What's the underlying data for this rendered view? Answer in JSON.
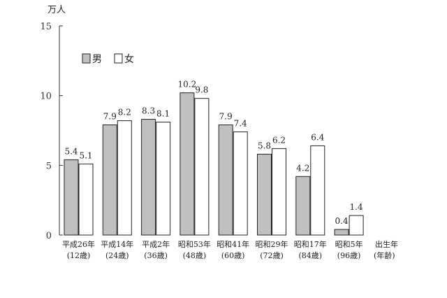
{
  "chart_data": {
    "type": "bar",
    "unit_label": "万人",
    "categories": [
      {
        "line1": "平成26年",
        "line2": "(12歳)"
      },
      {
        "line1": "平成14年",
        "line2": "(24歳)"
      },
      {
        "line1": "平成2年",
        "line2": "(36歳)"
      },
      {
        "line1": "昭和53年",
        "line2": "(48歳)"
      },
      {
        "line1": "昭和41年",
        "line2": "(60歳)"
      },
      {
        "line1": "昭和29年",
        "line2": "(72歳)"
      },
      {
        "line1": "昭和17年",
        "line2": "(84歳)"
      },
      {
        "line1": "昭和5年",
        "line2": "(96歳)"
      }
    ],
    "x_axis_label": {
      "line1": "出生年",
      "line2": "(年齢)"
    },
    "series": [
      {
        "name": "男",
        "color": "#c0c0c0",
        "values": [
          5.4,
          7.9,
          8.3,
          10.2,
          7.9,
          5.8,
          4.2,
          0.4
        ]
      },
      {
        "name": "女",
        "color": "#ffffff",
        "values": [
          5.1,
          8.2,
          8.1,
          9.8,
          7.4,
          6.2,
          6.4,
          1.4
        ]
      }
    ],
    "value_labels": [
      [
        "5.4",
        "7.9",
        "8.3",
        "10.2",
        "7.9",
        "5.8",
        "4.2",
        "0.4"
      ],
      [
        "5.1",
        "8.2",
        "8.1",
        "9.8",
        "7.4",
        "6.2",
        "6.4",
        "1.4"
      ]
    ],
    "y_ticks": [
      "0",
      "5",
      "10",
      "15"
    ],
    "ylim": [
      0,
      15
    ],
    "legend_position": "top-left",
    "grid": false
  }
}
